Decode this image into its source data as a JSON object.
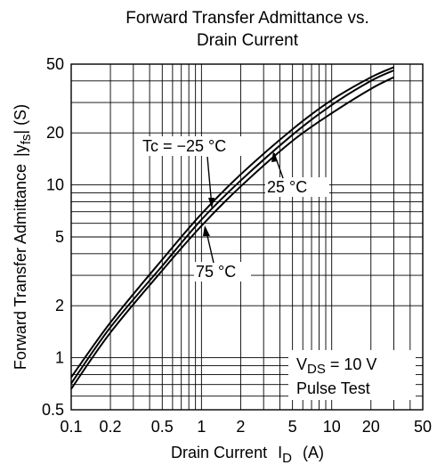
{
  "chart_data": {
    "type": "line",
    "title": [
      "Forward Transfer Admittance vs.",
      "Drain Current"
    ],
    "xlabel": "Drain Current",
    "xlabel_symbol": "I",
    "xlabel_sub": "D",
    "xlabel_unit": "(A)",
    "ylabel": "Forward Transfer Admittance",
    "ylabel_symbol_open": "|y",
    "ylabel_sub": "fs",
    "ylabel_symbol_close": "| (S)",
    "xscale": "log",
    "yscale": "log",
    "xlim": [
      0.1,
      50
    ],
    "ylim": [
      0.5,
      50
    ],
    "grid": true,
    "x_ticks": [
      {
        "value": 0.1,
        "label": "0.1"
      },
      {
        "value": 0.2,
        "label": "0.2"
      },
      {
        "value": 0.5,
        "label": "0.5"
      },
      {
        "value": 1,
        "label": "1"
      },
      {
        "value": 2,
        "label": "2"
      },
      {
        "value": 5,
        "label": "5"
      },
      {
        "value": 10,
        "label": "10"
      },
      {
        "value": 20,
        "label": "20"
      },
      {
        "value": 50,
        "label": "50"
      }
    ],
    "y_ticks": [
      {
        "value": 0.5,
        "label": "0.5"
      },
      {
        "value": 1,
        "label": "1"
      },
      {
        "value": 2,
        "label": "2"
      },
      {
        "value": 5,
        "label": "5"
      },
      {
        "value": 10,
        "label": "10"
      },
      {
        "value": 20,
        "label": "20"
      },
      {
        "value": 50,
        "label": "50"
      }
    ],
    "series": [
      {
        "name": "Tc = −25 °C",
        "x": [
          0.1,
          0.2,
          0.5,
          1,
          2,
          5,
          10,
          20,
          30
        ],
        "y": [
          0.77,
          1.6,
          3.7,
          6.8,
          11.5,
          21,
          31,
          42,
          48
        ]
      },
      {
        "name": "25 °C",
        "x": [
          0.1,
          0.2,
          0.5,
          1,
          2,
          5,
          10,
          20,
          30
        ],
        "y": [
          0.71,
          1.5,
          3.4,
          6.3,
          10.6,
          19.5,
          29,
          40,
          46
        ]
      },
      {
        "name": "75 °C",
        "x": [
          0.1,
          0.2,
          0.5,
          1,
          2,
          5,
          10,
          20,
          30
        ],
        "y": [
          0.66,
          1.4,
          3.2,
          5.8,
          9.8,
          18,
          26,
          36,
          42
        ]
      }
    ],
    "annotations": {
      "vds_prefix": "V",
      "vds_sub": "DS",
      "vds_value": " = 10 V",
      "pulse": "Pulse Test"
    }
  }
}
